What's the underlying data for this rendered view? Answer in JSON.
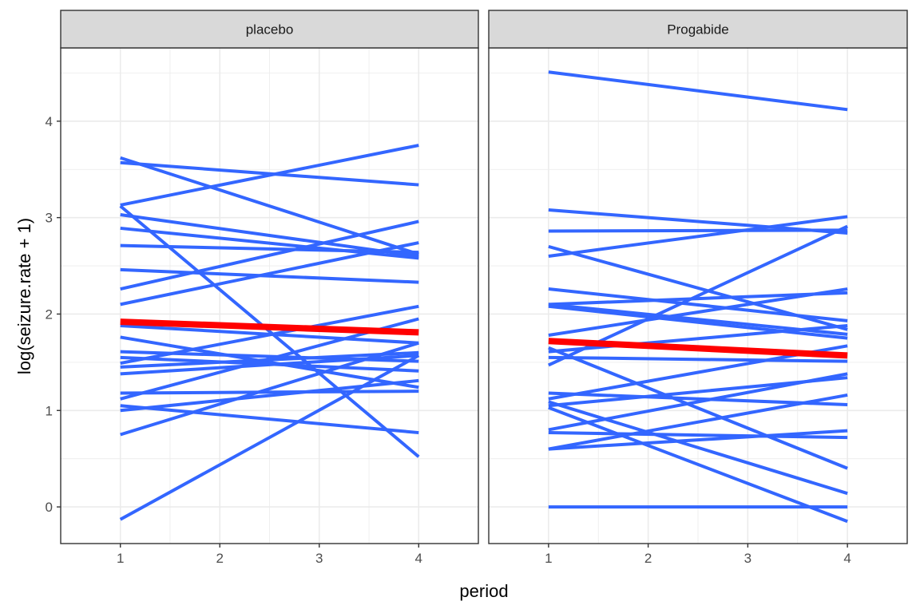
{
  "chart_data": {
    "type": "line",
    "xlabel": "period",
    "ylabel": "log(seizure.rate + 1)",
    "xlim": [
      0.4,
      4.6
    ],
    "ylim": [
      -0.38,
      4.76
    ],
    "x_ticks": [
      1,
      2,
      3,
      4
    ],
    "y_ticks": [
      0,
      1,
      2,
      3,
      4
    ],
    "grid": true,
    "colors": {
      "individual": "#3366FF",
      "mean": "#FF0000",
      "strip_bg": "#D9D9D9",
      "grid": "#EBEBEB",
      "border": "#333333"
    },
    "panels": [
      {
        "title": "placebo",
        "mean_line": [
          1.92,
          1.81
        ],
        "individual_lines": [
          [
            3.62,
            2.62
          ],
          [
            3.57,
            3.34
          ],
          [
            3.13,
            3.75
          ],
          [
            3.12,
            0.52
          ],
          [
            3.03,
            2.6
          ],
          [
            2.89,
            2.58
          ],
          [
            2.71,
            2.64
          ],
          [
            2.46,
            2.33
          ],
          [
            2.26,
            2.96
          ],
          [
            2.1,
            2.74
          ],
          [
            1.88,
            1.7
          ],
          [
            1.76,
            1.24
          ],
          [
            1.61,
            1.51
          ],
          [
            1.55,
            1.41
          ],
          [
            1.49,
            2.08
          ],
          [
            1.45,
            1.6
          ],
          [
            1.38,
            1.57
          ],
          [
            1.18,
            1.2
          ],
          [
            1.12,
            1.95
          ],
          [
            1.05,
            0.77
          ],
          [
            1.0,
            1.31
          ],
          [
            0.75,
            1.7
          ],
          [
            -0.13,
            1.57
          ]
        ]
      },
      {
        "title": "Progabide",
        "mean_line": [
          1.72,
          1.57
        ],
        "individual_lines": [
          [
            4.51,
            4.12
          ],
          [
            3.08,
            2.84
          ],
          [
            2.86,
            2.87
          ],
          [
            2.7,
            1.84
          ],
          [
            2.6,
            3.01
          ],
          [
            2.26,
            1.93
          ],
          [
            2.1,
            2.22
          ],
          [
            2.08,
            1.75
          ],
          [
            2.1,
            1.79
          ],
          [
            1.78,
            2.26
          ],
          [
            1.65,
            0.4
          ],
          [
            1.61,
            1.88
          ],
          [
            1.55,
            1.51
          ],
          [
            1.47,
            2.91
          ],
          [
            1.18,
            1.06
          ],
          [
            1.12,
            1.67
          ],
          [
            1.09,
            0.14
          ],
          [
            1.05,
            1.34
          ],
          [
            1.03,
            -0.15
          ],
          [
            0.8,
            1.38
          ],
          [
            0.77,
            0.72
          ],
          [
            0.6,
            0.79
          ],
          [
            0.6,
            1.16
          ],
          [
            0.0,
            0.0
          ]
        ]
      }
    ]
  }
}
